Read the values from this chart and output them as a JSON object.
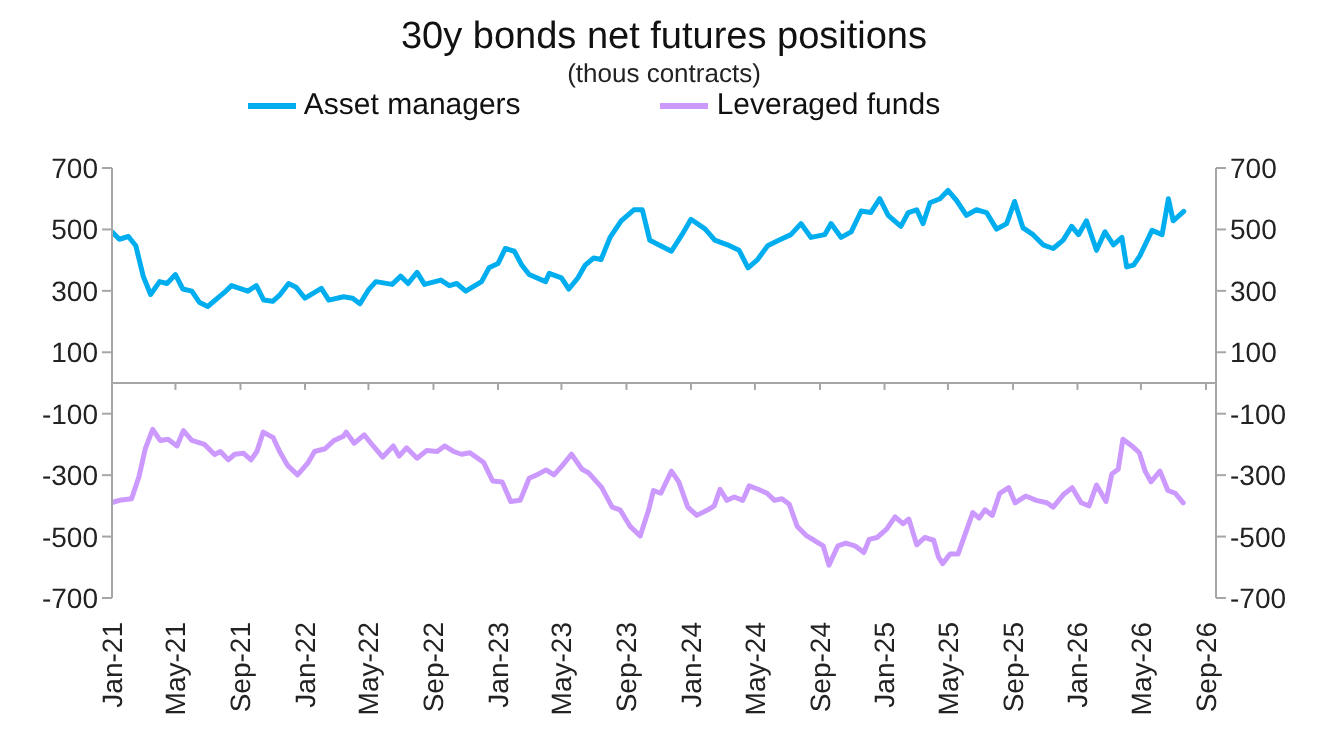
{
  "chart_data": {
    "type": "line",
    "title": "30y bonds net futures positions",
    "subtitle": "(thous contracts)",
    "xlim": [
      "2021-01-01",
      "2026-09-20"
    ],
    "xticks": [
      {
        "value": "2021-01",
        "label": "Jan-21"
      },
      {
        "value": "2021-05",
        "label": "May-21"
      },
      {
        "value": "2021-09",
        "label": "Sep-21"
      },
      {
        "value": "2022-01",
        "label": "Jan-22"
      },
      {
        "value": "2022-05",
        "label": "May-22"
      },
      {
        "value": "2022-09",
        "label": "Sep-22"
      },
      {
        "value": "2023-01",
        "label": "Jan-23"
      },
      {
        "value": "2023-05",
        "label": "May-23"
      },
      {
        "value": "2023-09",
        "label": "Sep-23"
      },
      {
        "value": "2024-01",
        "label": "Jan-24"
      },
      {
        "value": "2024-05",
        "label": "May-24"
      },
      {
        "value": "2024-09",
        "label": "Sep-24"
      },
      {
        "value": "2025-01",
        "label": "Jan-25"
      },
      {
        "value": "2025-05",
        "label": "May-25"
      },
      {
        "value": "2025-09",
        "label": "Sep-25"
      },
      {
        "value": "2026-01",
        "label": "Jan-26"
      },
      {
        "value": "2026-05",
        "label": "May-26"
      },
      {
        "value": "2026-09",
        "label": "Sep-26"
      }
    ],
    "ylim": [
      -700,
      700
    ],
    "yticks": [
      -700,
      -500,
      -300,
      -100,
      100,
      300,
      500,
      700
    ],
    "y2lim": [
      -700,
      700
    ],
    "y2ticks": [
      -700,
      -500,
      -300,
      -100,
      100,
      300,
      500,
      700
    ],
    "legend": "top",
    "marker": "none",
    "line_style": "solid",
    "series": [
      {
        "name": "Asset managers",
        "color": "#00aeef",
        "x": [
          "2021-01-01",
          "2021-01-15",
          "2021-02-01",
          "2021-02-15",
          "2021-03-01",
          "2021-03-15",
          "2021-04-01",
          "2021-04-15",
          "2021-05-01",
          "2021-05-15",
          "2021-06-01",
          "2021-06-15",
          "2021-07-01",
          "2021-08-01",
          "2021-08-15",
          "2021-09-15",
          "2021-10-01",
          "2021-10-15",
          "2021-11-01",
          "2021-11-15",
          "2021-12-01",
          "2021-12-15",
          "2022-01-01",
          "2022-02-01",
          "2022-02-15",
          "2022-03-15",
          "2022-04-01",
          "2022-04-15",
          "2022-05-01",
          "2022-05-15",
          "2022-06-15",
          "2022-07-01",
          "2022-07-15",
          "2022-08-01",
          "2022-08-15",
          "2022-09-15",
          "2022-10-01",
          "2022-10-15",
          "2022-11-01",
          "2022-12-01",
          "2022-12-15",
          "2023-01-01",
          "2023-01-15",
          "2023-02-01",
          "2023-02-15",
          "2023-03-01",
          "2023-04-01",
          "2023-04-08",
          "2023-05-01",
          "2023-05-15",
          "2023-06-01",
          "2023-06-15",
          "2023-07-01",
          "2023-07-15",
          "2023-08-01",
          "2023-08-22",
          "2023-09-15",
          "2023-10-01",
          "2023-10-15",
          "2023-11-25",
          "2023-12-15",
          "2024-01-01",
          "2024-01-28",
          "2024-02-15",
          "2024-03-10",
          "2024-04-01",
          "2024-04-18",
          "2024-05-06",
          "2024-05-25",
          "2024-06-15",
          "2024-07-08",
          "2024-07-27",
          "2024-08-15",
          "2024-09-10",
          "2024-09-22",
          "2024-10-11",
          "2024-10-30",
          "2024-11-18",
          "2024-12-06",
          "2024-12-23",
          "2025-01-08",
          "2025-02-01",
          "2025-02-15",
          "2025-03-03",
          "2025-03-15",
          "2025-03-28",
          "2025-04-16",
          "2025-05-01",
          "2025-05-17",
          "2025-06-05",
          "2025-06-24",
          "2025-07-13",
          "2025-08-01",
          "2025-08-20",
          "2025-09-04",
          "2025-09-20",
          "2025-10-09",
          "2025-10-28",
          "2025-11-16",
          "2025-12-05",
          "2025-12-21",
          "2026-01-03",
          "2026-01-18",
          "2026-02-06",
          "2026-02-22",
          "2026-03-10",
          "2026-03-26",
          "2026-04-04",
          "2026-04-17",
          "2026-04-29",
          "2026-05-22",
          "2026-06-10",
          "2026-06-22",
          "2026-07-01",
          "2026-07-21"
        ],
        "values": [
          492,
          468,
          477,
          447,
          348,
          288,
          330,
          324,
          353,
          306,
          299,
          263,
          249,
          294,
          317,
          299,
          317,
          270,
          266,
          288,
          324,
          312,
          276,
          308,
          270,
          281,
          276,
          258,
          303,
          330,
          321,
          348,
          324,
          360,
          321,
          335,
          317,
          324,
          299,
          330,
          375,
          389,
          438,
          429,
          384,
          353,
          330,
          357,
          342,
          306,
          342,
          384,
          407,
          402,
          474,
          528,
          564,
          564,
          465,
          429,
          483,
          533,
          501,
          465,
          450,
          432,
          375,
          402,
          447,
          465,
          483,
          519,
          474,
          483,
          519,
          474,
          492,
          560,
          555,
          600,
          546,
          510,
          555,
          564,
          519,
          587,
          600,
          627,
          595,
          546,
          564,
          555,
          501,
          519,
          591,
          505,
          483,
          450,
          438,
          465,
          510,
          483,
          528,
          432,
          492,
          450,
          474,
          378,
          384,
          414,
          497,
          483,
          600,
          528,
          559
        ]
      },
      {
        "name": "Leveraged funds",
        "color": "#cc99ff",
        "x": [
          "2021-01-01",
          "2021-01-15",
          "2021-02-07",
          "2021-02-21",
          "2021-03-05",
          "2021-03-19",
          "2021-04-02",
          "2021-04-17",
          "2021-05-04",
          "2021-05-16",
          "2021-06-01",
          "2021-06-25",
          "2021-07-14",
          "2021-07-25",
          "2021-08-09",
          "2021-08-21",
          "2021-09-07",
          "2021-09-21",
          "2021-10-02",
          "2021-10-14",
          "2021-11-02",
          "2021-11-14",
          "2021-11-29",
          "2021-12-18",
          "2022-01-07",
          "2022-01-19",
          "2022-02-08",
          "2022-02-25",
          "2022-03-15",
          "2022-03-20",
          "2022-04-04",
          "2022-04-23",
          "2022-05-10",
          "2022-05-28",
          "2022-06-17",
          "2022-06-28",
          "2022-07-12",
          "2022-08-01",
          "2022-08-19",
          "2022-09-08",
          "2022-09-22",
          "2022-10-09",
          "2022-10-24",
          "2022-11-09",
          "2022-12-05",
          "2022-12-22",
          "2023-01-09",
          "2023-01-25",
          "2023-02-12",
          "2023-03-01",
          "2023-03-19",
          "2023-04-02",
          "2023-04-17",
          "2023-05-03",
          "2023-05-20",
          "2023-06-09",
          "2023-06-21",
          "2023-07-16",
          "2023-08-05",
          "2023-08-20",
          "2023-09-08",
          "2023-09-27",
          "2023-10-13",
          "2023-10-22",
          "2023-11-05",
          "2023-11-25",
          "2023-12-09",
          "2023-12-26",
          "2024-01-12",
          "2024-02-02",
          "2024-02-14",
          "2024-02-25",
          "2024-03-09",
          "2024-03-23",
          "2024-04-08",
          "2024-04-20",
          "2024-05-07",
          "2024-05-24",
          "2024-06-07",
          "2024-06-21",
          "2024-07-05",
          "2024-07-20",
          "2024-08-07",
          "2024-08-21",
          "2024-09-07",
          "2024-09-18",
          "2024-10-05",
          "2024-10-20",
          "2024-11-06",
          "2024-11-23",
          "2024-12-03",
          "2024-12-18",
          "2025-01-05",
          "2025-01-21",
          "2025-02-05",
          "2025-02-16",
          "2025-03-03",
          "2025-03-18",
          "2025-04-04",
          "2025-04-13",
          "2025-04-21",
          "2025-05-05",
          "2025-05-20",
          "2025-06-06",
          "2025-06-17",
          "2025-06-29",
          "2025-07-10",
          "2025-07-24",
          "2025-08-07",
          "2025-08-24",
          "2025-09-05",
          "2025-09-25",
          "2025-10-15",
          "2025-11-04",
          "2025-11-16",
          "2025-12-05",
          "2025-12-22",
          "2026-01-08",
          "2026-01-23",
          "2026-02-06",
          "2026-02-24",
          "2026-03-07",
          "2026-03-19",
          "2026-03-28",
          "2026-04-14",
          "2026-04-28",
          "2026-05-09",
          "2026-05-20",
          "2026-06-06",
          "2026-06-21",
          "2026-07-05",
          "2026-07-20"
        ],
        "values": [
          -389,
          -382,
          -377,
          -305,
          -214,
          -151,
          -187,
          -183,
          -205,
          -155,
          -187,
          -200,
          -233,
          -223,
          -250,
          -232,
          -229,
          -250,
          -223,
          -160,
          -178,
          -223,
          -268,
          -299,
          -259,
          -223,
          -214,
          -187,
          -173,
          -160,
          -196,
          -169,
          -205,
          -241,
          -205,
          -238,
          -211,
          -245,
          -220,
          -223,
          -205,
          -223,
          -232,
          -227,
          -259,
          -319,
          -322,
          -386,
          -382,
          -310,
          -296,
          -283,
          -299,
          -268,
          -232,
          -281,
          -292,
          -340,
          -404,
          -413,
          -467,
          -498,
          -413,
          -350,
          -359,
          -287,
          -322,
          -404,
          -431,
          -413,
          -400,
          -346,
          -382,
          -371,
          -382,
          -335,
          -346,
          -359,
          -382,
          -377,
          -395,
          -467,
          -498,
          -512,
          -530,
          -593,
          -530,
          -521,
          -530,
          -552,
          -509,
          -503,
          -476,
          -436,
          -458,
          -443,
          -527,
          -503,
          -512,
          -566,
          -588,
          -557,
          -557,
          -476,
          -422,
          -440,
          -413,
          -431,
          -359,
          -341,
          -390,
          -368,
          -382,
          -390,
          -404,
          -364,
          -341,
          -390,
          -400,
          -332,
          -386,
          -296,
          -281,
          -183,
          -205,
          -227,
          -287,
          -322,
          -287,
          -350,
          -359,
          -390
        ]
      }
    ]
  }
}
